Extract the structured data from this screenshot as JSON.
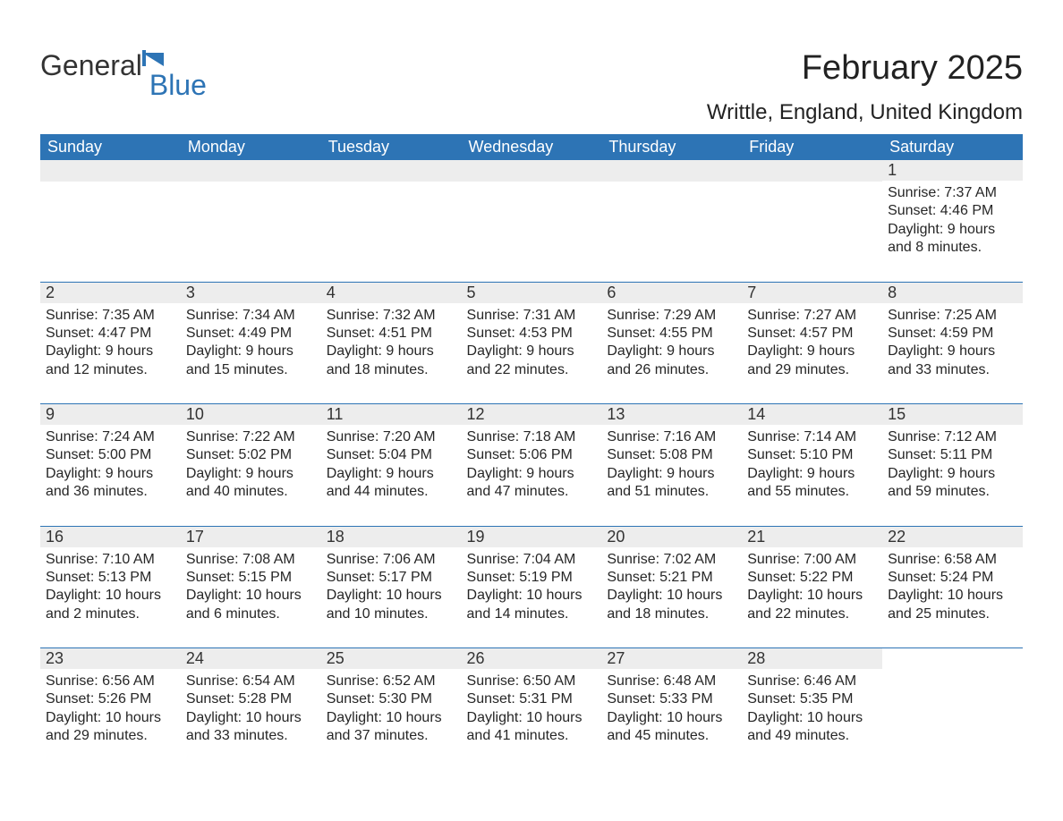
{
  "logo": {
    "general": "General",
    "blue": "Blue",
    "brand_color": "#2d74b5"
  },
  "title": "February 2025",
  "location": "Writtle, England, United Kingdom",
  "colors": {
    "header_bg": "#2d74b5",
    "header_text": "#ffffff",
    "daybar_bg": "#ededed",
    "text": "#333333",
    "separator": "#2d74b5",
    "page_bg": "#ffffff"
  },
  "day_labels": [
    "Sunday",
    "Monday",
    "Tuesday",
    "Wednesday",
    "Thursday",
    "Friday",
    "Saturday"
  ],
  "labels": {
    "sunrise": "Sunrise:",
    "sunset": "Sunset:",
    "daylight": "Daylight:"
  },
  "weeks": [
    [
      null,
      null,
      null,
      null,
      null,
      null,
      {
        "n": "1",
        "sr": "7:37 AM",
        "ss": "4:46 PM",
        "dl": "9 hours and 8 minutes."
      }
    ],
    [
      {
        "n": "2",
        "sr": "7:35 AM",
        "ss": "4:47 PM",
        "dl": "9 hours and 12 minutes."
      },
      {
        "n": "3",
        "sr": "7:34 AM",
        "ss": "4:49 PM",
        "dl": "9 hours and 15 minutes."
      },
      {
        "n": "4",
        "sr": "7:32 AM",
        "ss": "4:51 PM",
        "dl": "9 hours and 18 minutes."
      },
      {
        "n": "5",
        "sr": "7:31 AM",
        "ss": "4:53 PM",
        "dl": "9 hours and 22 minutes."
      },
      {
        "n": "6",
        "sr": "7:29 AM",
        "ss": "4:55 PM",
        "dl": "9 hours and 26 minutes."
      },
      {
        "n": "7",
        "sr": "7:27 AM",
        "ss": "4:57 PM",
        "dl": "9 hours and 29 minutes."
      },
      {
        "n": "8",
        "sr": "7:25 AM",
        "ss": "4:59 PM",
        "dl": "9 hours and 33 minutes."
      }
    ],
    [
      {
        "n": "9",
        "sr": "7:24 AM",
        "ss": "5:00 PM",
        "dl": "9 hours and 36 minutes."
      },
      {
        "n": "10",
        "sr": "7:22 AM",
        "ss": "5:02 PM",
        "dl": "9 hours and 40 minutes."
      },
      {
        "n": "11",
        "sr": "7:20 AM",
        "ss": "5:04 PM",
        "dl": "9 hours and 44 minutes."
      },
      {
        "n": "12",
        "sr": "7:18 AM",
        "ss": "5:06 PM",
        "dl": "9 hours and 47 minutes."
      },
      {
        "n": "13",
        "sr": "7:16 AM",
        "ss": "5:08 PM",
        "dl": "9 hours and 51 minutes."
      },
      {
        "n": "14",
        "sr": "7:14 AM",
        "ss": "5:10 PM",
        "dl": "9 hours and 55 minutes."
      },
      {
        "n": "15",
        "sr": "7:12 AM",
        "ss": "5:11 PM",
        "dl": "9 hours and 59 minutes."
      }
    ],
    [
      {
        "n": "16",
        "sr": "7:10 AM",
        "ss": "5:13 PM",
        "dl": "10 hours and 2 minutes."
      },
      {
        "n": "17",
        "sr": "7:08 AM",
        "ss": "5:15 PM",
        "dl": "10 hours and 6 minutes."
      },
      {
        "n": "18",
        "sr": "7:06 AM",
        "ss": "5:17 PM",
        "dl": "10 hours and 10 minutes."
      },
      {
        "n": "19",
        "sr": "7:04 AM",
        "ss": "5:19 PM",
        "dl": "10 hours and 14 minutes."
      },
      {
        "n": "20",
        "sr": "7:02 AM",
        "ss": "5:21 PM",
        "dl": "10 hours and 18 minutes."
      },
      {
        "n": "21",
        "sr": "7:00 AM",
        "ss": "5:22 PM",
        "dl": "10 hours and 22 minutes."
      },
      {
        "n": "22",
        "sr": "6:58 AM",
        "ss": "5:24 PM",
        "dl": "10 hours and 25 minutes."
      }
    ],
    [
      {
        "n": "23",
        "sr": "6:56 AM",
        "ss": "5:26 PM",
        "dl": "10 hours and 29 minutes."
      },
      {
        "n": "24",
        "sr": "6:54 AM",
        "ss": "5:28 PM",
        "dl": "10 hours and 33 minutes."
      },
      {
        "n": "25",
        "sr": "6:52 AM",
        "ss": "5:30 PM",
        "dl": "10 hours and 37 minutes."
      },
      {
        "n": "26",
        "sr": "6:50 AM",
        "ss": "5:31 PM",
        "dl": "10 hours and 41 minutes."
      },
      {
        "n": "27",
        "sr": "6:48 AM",
        "ss": "5:33 PM",
        "dl": "10 hours and 45 minutes."
      },
      {
        "n": "28",
        "sr": "6:46 AM",
        "ss": "5:35 PM",
        "dl": "10 hours and 49 minutes."
      },
      null
    ]
  ]
}
